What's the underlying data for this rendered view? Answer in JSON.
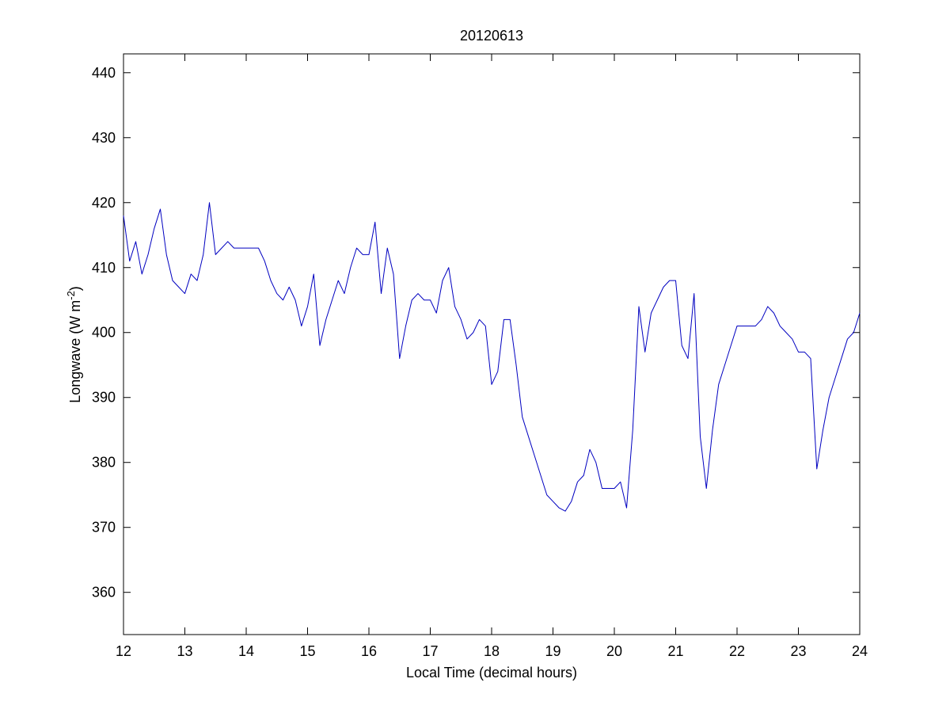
{
  "chart_data": {
    "type": "line",
    "title": "20120613",
    "x_label": "Local Time (decimal hours)",
    "y_label": {
      "text": "Longwave (W m",
      "superscript": "-2",
      "suffix": ")"
    },
    "x": [
      12.0,
      12.1,
      12.2,
      12.3,
      12.4,
      12.5,
      12.6,
      12.7,
      12.8,
      12.9,
      13.0,
      13.1,
      13.2,
      13.3,
      13.4,
      13.5,
      13.6,
      13.7,
      13.8,
      13.9,
      14.0,
      14.1,
      14.2,
      14.3,
      14.4,
      14.5,
      14.6,
      14.7,
      14.8,
      14.9,
      15.0,
      15.1,
      15.2,
      15.3,
      15.4,
      15.5,
      15.6,
      15.7,
      15.8,
      15.9,
      16.0,
      16.1,
      16.2,
      16.3,
      16.4,
      16.5,
      16.6,
      16.7,
      16.8,
      16.9,
      17.0,
      17.1,
      17.2,
      17.3,
      17.4,
      17.5,
      17.6,
      17.7,
      17.8,
      17.9,
      18.0,
      18.1,
      18.2,
      18.3,
      18.4,
      18.5,
      18.6,
      18.7,
      18.8,
      18.9,
      19.0,
      19.1,
      19.2,
      19.3,
      19.4,
      19.5,
      19.6,
      19.7,
      19.8,
      19.9,
      20.0,
      20.1,
      20.2,
      20.3,
      20.4,
      20.5,
      20.6,
      20.7,
      20.8,
      20.9,
      21.0,
      21.1,
      21.2,
      21.3,
      21.4,
      21.5,
      21.6,
      21.7,
      21.8,
      21.9,
      22.0,
      22.1,
      22.2,
      22.3,
      22.4,
      22.5,
      22.6,
      22.7,
      22.8,
      22.9,
      23.0,
      23.1,
      23.2,
      23.3,
      23.4,
      23.5,
      23.6,
      23.7,
      23.8,
      23.9,
      24.0
    ],
    "series": [
      {
        "name": "Longwave",
        "color": "#0000c0",
        "values": [
          418,
          411,
          414,
          409,
          412,
          416,
          419,
          412,
          408,
          407,
          406,
          409,
          408,
          412,
          420,
          412,
          413,
          414,
          413,
          413,
          413,
          413,
          413,
          411,
          408,
          406,
          405,
          407,
          405,
          401,
          404,
          409,
          398,
          402,
          405,
          408,
          406,
          410,
          413,
          412,
          412,
          417,
          406,
          413,
          409,
          396,
          401,
          405,
          406,
          405,
          405,
          403,
          408,
          410,
          404,
          402,
          399,
          400,
          402,
          401,
          392,
          394,
          402,
          402,
          395,
          387,
          384,
          381,
          378,
          375,
          374,
          373,
          372.5,
          374,
          377,
          378,
          382,
          380,
          376,
          376,
          376,
          377,
          373,
          385,
          404,
          397,
          403,
          405,
          407,
          408,
          408,
          398,
          396,
          406,
          384,
          376,
          385,
          392,
          395,
          398,
          401,
          401,
          401,
          401,
          402,
          404,
          403,
          401,
          400,
          399,
          397,
          397,
          396,
          379,
          385,
          390,
          393,
          396,
          399,
          400,
          403
        ]
      }
    ],
    "xlim": [
      12,
      24
    ],
    "ylim": [
      353.5,
      442.9
    ],
    "xticks": [
      12,
      13,
      14,
      15,
      16,
      17,
      18,
      19,
      20,
      21,
      22,
      23,
      24
    ],
    "yticks": [
      360,
      370,
      380,
      390,
      400,
      410,
      420,
      430,
      440
    ],
    "grid": false
  }
}
